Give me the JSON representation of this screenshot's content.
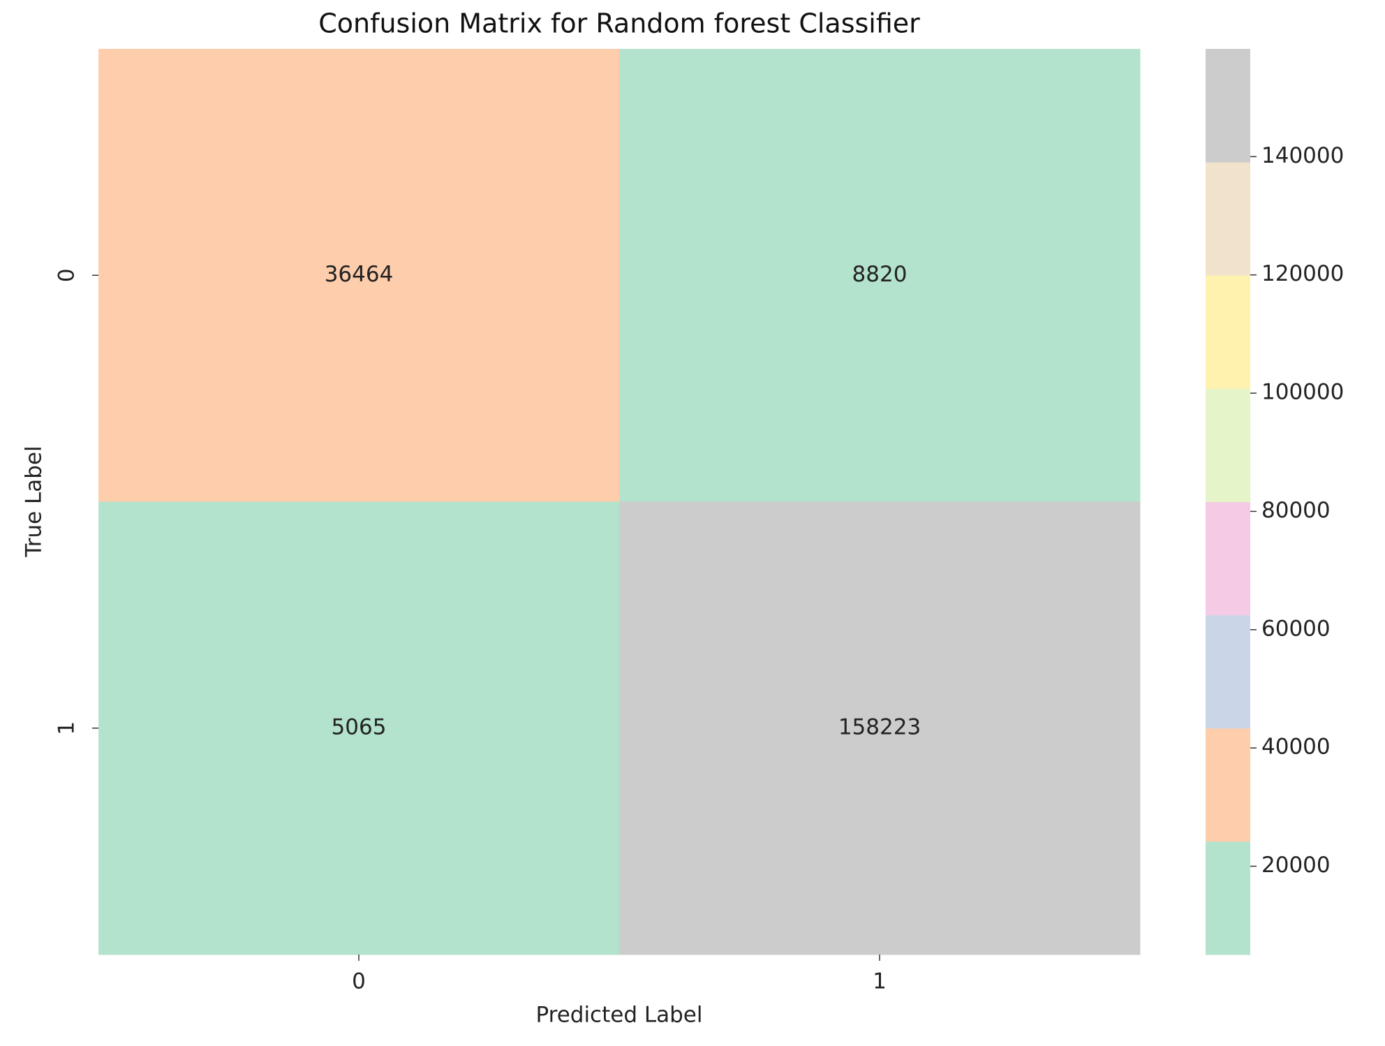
{
  "chart_data": {
    "type": "heatmap",
    "title": "Confusion Matrix for Random forest Classifier",
    "x_label": "Predicted Label",
    "y_label": "True Label",
    "x_categories": [
      "0",
      "1"
    ],
    "y_categories": [
      "0",
      "1"
    ],
    "values": [
      [
        36464,
        8820
      ],
      [
        5065,
        158223
      ]
    ],
    "colors": [
      "#b3e2cd",
      "#fdcdac",
      "#cbd5e8",
      "#f4cae4",
      "#e6f5c9",
      "#fff2ae",
      "#f1e2cc",
      "#cccccc"
    ],
    "clim": [
      5065,
      158223
    ],
    "colorbar_ticks": [
      20000,
      40000,
      60000,
      80000,
      100000,
      120000,
      140000
    ]
  }
}
